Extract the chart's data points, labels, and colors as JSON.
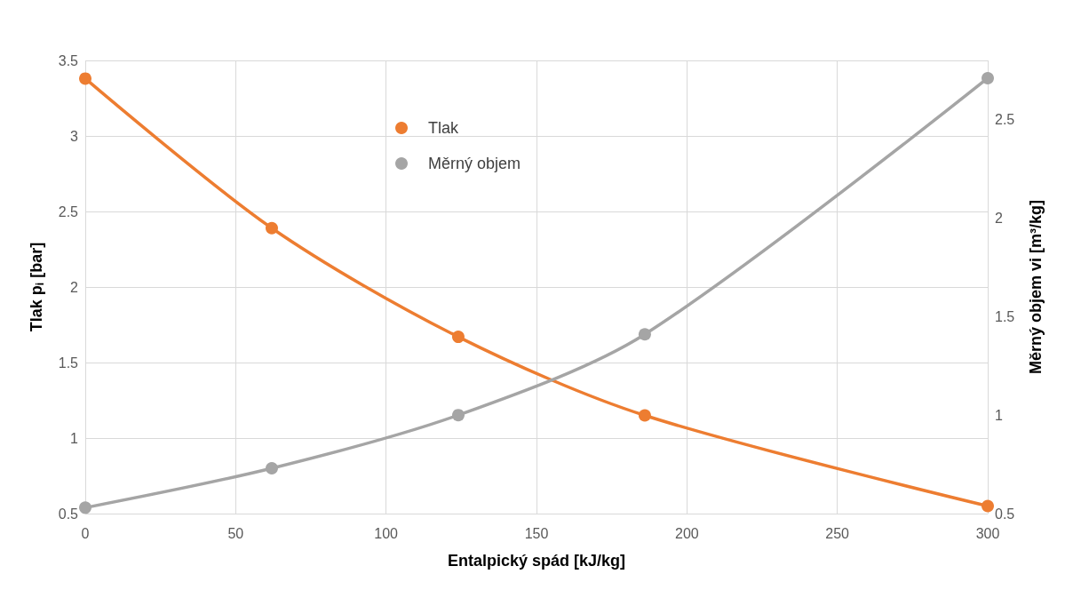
{
  "chart_data": {
    "type": "line",
    "xlabel": "Entalpický spád [kJ/kg]",
    "ylabel": "Tlak p$_{i}$ [bar]",
    "y2label": "Měrný objem vi [m³/kg]",
    "x": [
      0,
      62,
      124,
      186,
      300
    ],
    "series": [
      {
        "name": "Tlak",
        "color": "#ed7d31",
        "values": [
          3.38,
          2.39,
          1.67,
          1.15,
          0.55
        ]
      },
      {
        "name": "Měrný objem",
        "color": "#a5a5a5",
        "axis": "y2",
        "values": [
          0.53,
          0.73,
          1.0,
          1.41,
          2.71
        ]
      }
    ],
    "xlim": [
      0,
      300
    ],
    "xticks": [
      0,
      50,
      100,
      150,
      200,
      250,
      300
    ],
    "ylim": [
      0.5,
      3.5
    ],
    "yticks": [
      0.5,
      1,
      1.5,
      2,
      2.5,
      3,
      3.5
    ],
    "y2lim": [
      0.5,
      2.8
    ],
    "y2ticks": [
      0.5,
      1,
      1.5,
      2,
      2.5
    ],
    "grid": true,
    "legend": "top",
    "marker": "circle",
    "line_style": "solid"
  }
}
